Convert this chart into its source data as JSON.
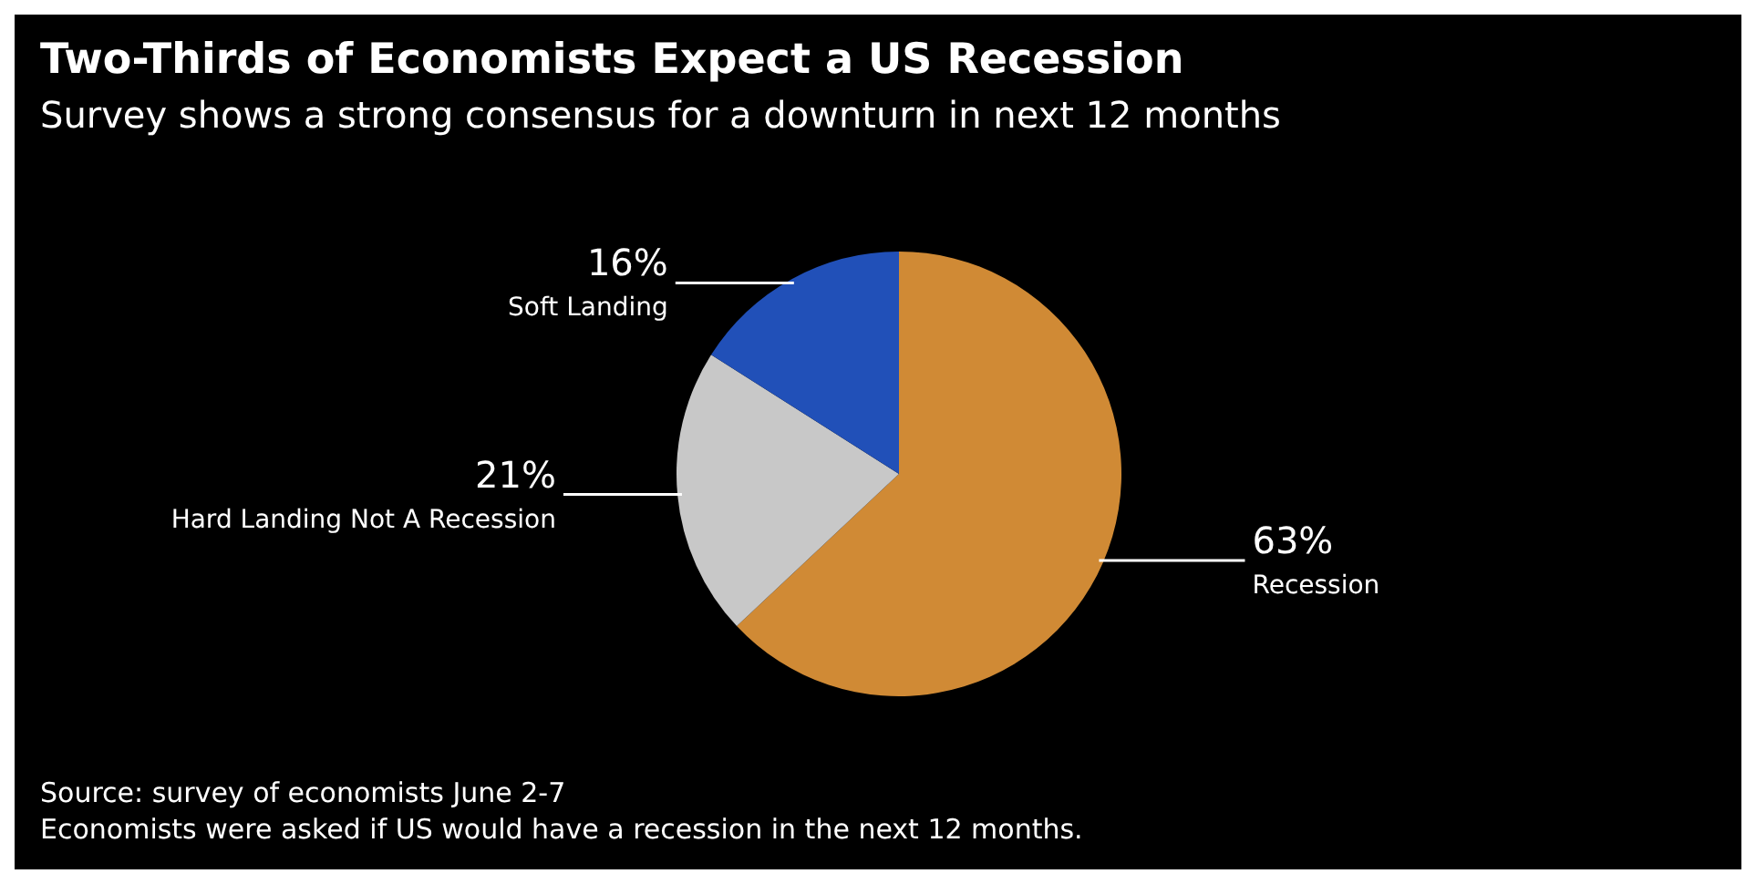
{
  "chart_data": {
    "type": "pie",
    "title": "Two-Thirds of Economists Expect a US Recession",
    "subtitle": "Survey shows a strong consensus for a downturn in next 12 months",
    "categories": [
      "Recession",
      "Hard Landing Not A Recession",
      "Soft Landing"
    ],
    "values": [
      63,
      21,
      16
    ],
    "colors": [
      "#d08a35",
      "#c8c8c8",
      "#2150b8"
    ],
    "value_labels": [
      "63%",
      "21%",
      "16%"
    ],
    "legend": false,
    "annotations": [
      "Source: survey of economists June 2-7",
      "Economists were asked if US would have a recession in the next 12 months."
    ]
  }
}
